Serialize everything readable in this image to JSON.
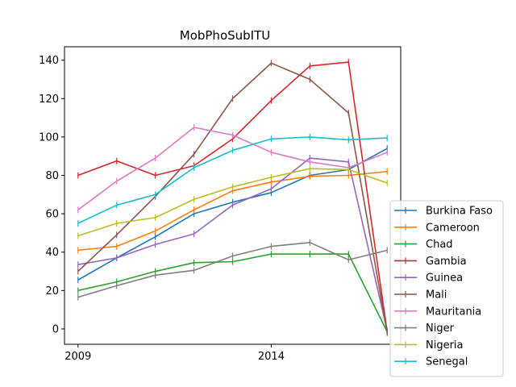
{
  "chart_data": {
    "type": "line",
    "title": "MobPhoSubITU",
    "xlabel": "",
    "ylabel": "",
    "x": [
      2009,
      2010,
      2011,
      2012,
      2013,
      2014,
      2015,
      2016,
      2017
    ],
    "xticks": [
      {
        "value": 2009,
        "label": "2009"
      },
      {
        "value": 2014,
        "label": "2014"
      }
    ],
    "xlim": [
      2008.65,
      2017.35
    ],
    "yticks": [
      0,
      20,
      40,
      60,
      80,
      100,
      120,
      140
    ],
    "ylim": [
      -8,
      147
    ],
    "legend_position": "lower-right-outside",
    "series": [
      {
        "name": "Burkina Faso",
        "color": "#1f77b4",
        "values": [
          25.5,
          37,
          48,
          60,
          66,
          71,
          80,
          83,
          94
        ]
      },
      {
        "name": "Cameroon",
        "color": "#ff7f0e",
        "values": [
          41,
          43,
          51,
          62,
          72,
          76.5,
          79.5,
          80,
          82
        ]
      },
      {
        "name": "Chad",
        "color": "#2ca02c",
        "values": [
          20,
          24.5,
          30,
          34.5,
          35,
          39,
          39,
          39,
          -1.5
        ]
      },
      {
        "name": "Gambia",
        "color": "#d62728",
        "values": [
          80,
          87.5,
          80,
          85,
          99,
          119,
          137,
          139,
          -1.5
        ]
      },
      {
        "name": "Guinea",
        "color": "#9467bd",
        "values": [
          33.5,
          37,
          44,
          49.5,
          64.5,
          73,
          89,
          87,
          -1
        ]
      },
      {
        "name": "Mali",
        "color": "#8c564b",
        "values": [
          30,
          49,
          69,
          91,
          120,
          138.5,
          130,
          112.5,
          -2
        ]
      },
      {
        "name": "Mauritania",
        "color": "#e377c2",
        "values": [
          62,
          77,
          89,
          105,
          101,
          92,
          87,
          84,
          92
        ]
      },
      {
        "name": "Niger",
        "color": "#7f7f7f",
        "values": [
          16.5,
          22.5,
          28,
          30.5,
          38,
          43,
          45,
          36,
          41
        ]
      },
      {
        "name": "Nigeria",
        "color": "#bcbd22",
        "values": [
          48.5,
          55,
          58,
          67.5,
          74,
          79,
          83.5,
          83,
          76
        ]
      },
      {
        "name": "Senegal",
        "color": "#17becf",
        "values": [
          55,
          64.5,
          70,
          84,
          93,
          99,
          100,
          98.5,
          99.5
        ]
      }
    ]
  }
}
